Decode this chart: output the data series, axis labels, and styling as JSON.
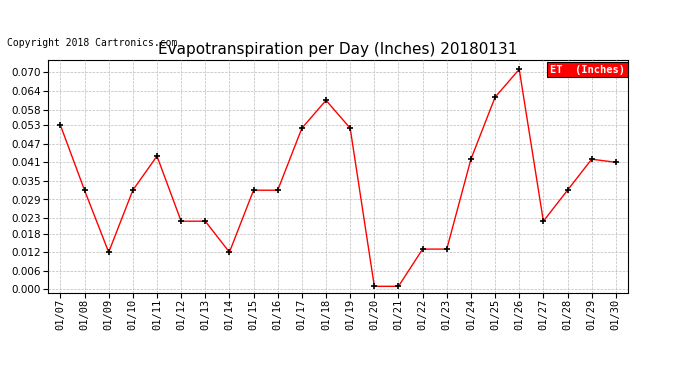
{
  "title": "Evapotranspiration per Day (Inches) 20180131",
  "copyright": "Copyright 2018 Cartronics.com",
  "legend_label": "ET  (Inches)",
  "legend_bg": "#ff0000",
  "legend_text_color": "#ffffff",
  "line_color": "#ff0000",
  "marker_color": "#000000",
  "dates": [
    "01/07",
    "01/08",
    "01/09",
    "01/10",
    "01/11",
    "01/12",
    "01/13",
    "01/14",
    "01/15",
    "01/16",
    "01/17",
    "01/18",
    "01/19",
    "01/20",
    "01/21",
    "01/22",
    "01/23",
    "01/24",
    "01/25",
    "01/26",
    "01/27",
    "01/28",
    "01/29",
    "01/30"
  ],
  "values": [
    0.053,
    0.032,
    0.012,
    0.032,
    0.043,
    0.022,
    0.022,
    0.012,
    0.032,
    0.032,
    0.052,
    0.061,
    0.052,
    0.001,
    0.001,
    0.013,
    0.013,
    0.042,
    0.062,
    0.071,
    0.022,
    0.032,
    0.042,
    0.041
  ],
  "ylim": [
    -0.001,
    0.074
  ],
  "yticks": [
    0.0,
    0.006,
    0.012,
    0.018,
    0.023,
    0.029,
    0.035,
    0.041,
    0.047,
    0.053,
    0.058,
    0.064,
    0.07
  ],
  "bg_color": "#ffffff",
  "grid_color": "#bbbbbb",
  "title_fontsize": 11,
  "copyright_fontsize": 7,
  "tick_fontsize": 7.5
}
